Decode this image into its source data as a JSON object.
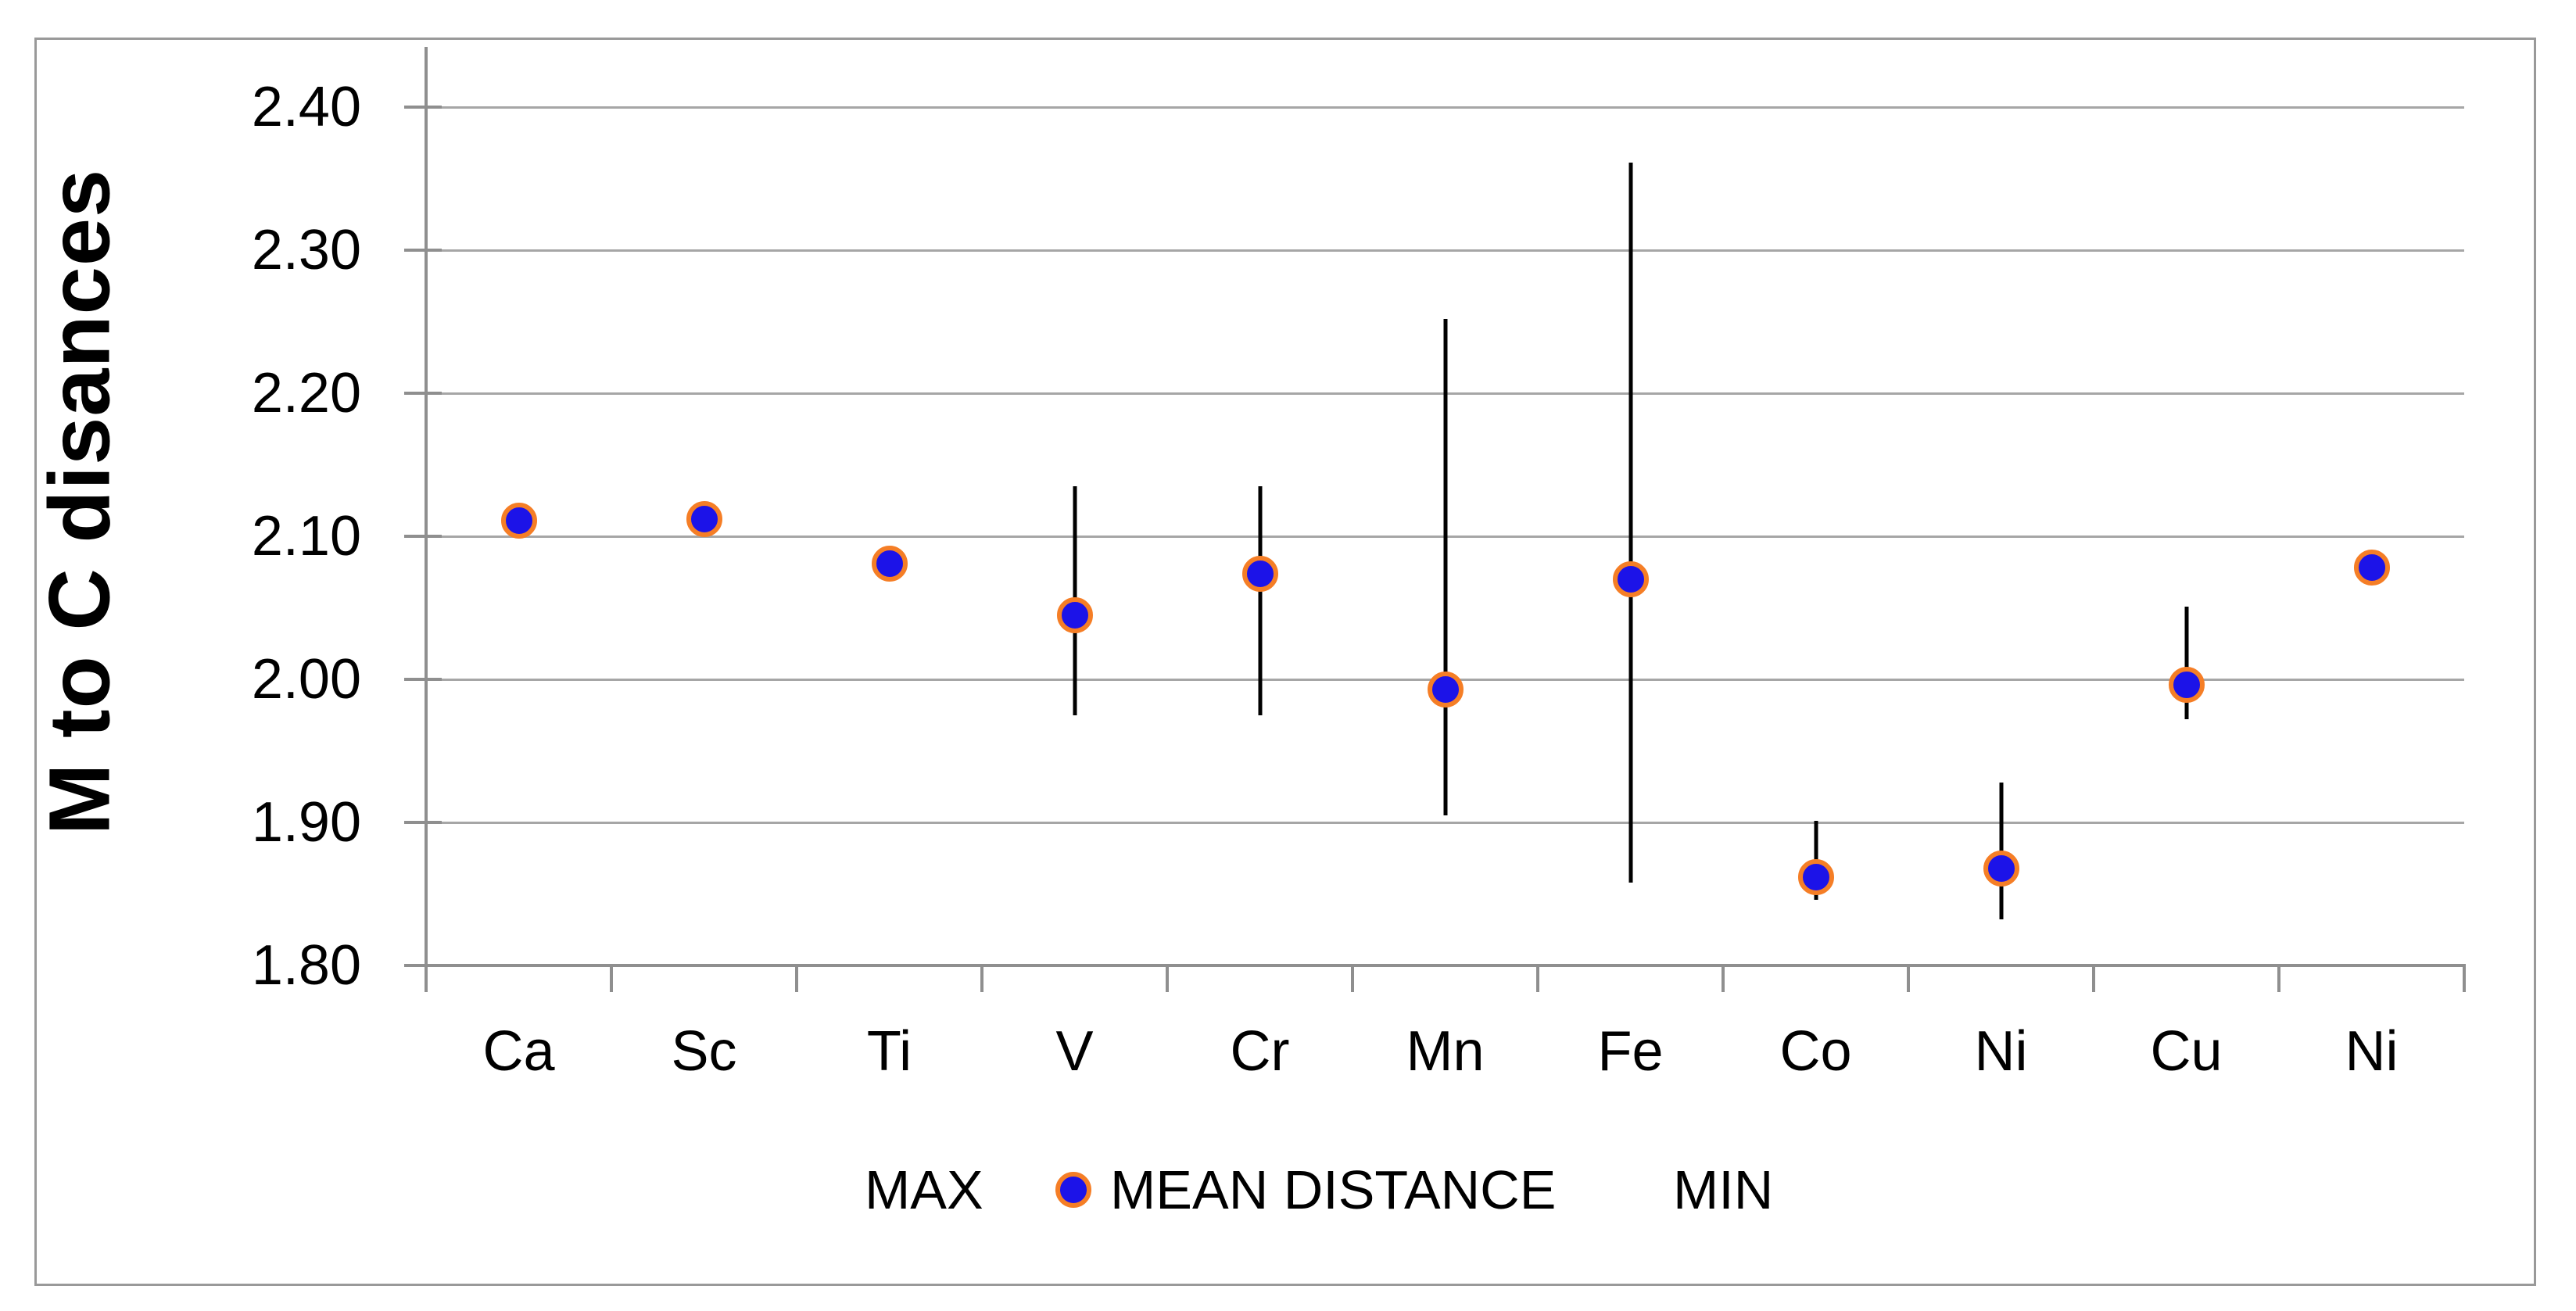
{
  "chart_data": {
    "type": "scatter",
    "title": "",
    "xlabel": "",
    "ylabel": "M to C disances",
    "categories": [
      "Ca",
      "Sc",
      "Ti",
      "V",
      "Cr",
      "Mn",
      "Fe",
      "Co",
      "Ni",
      "Cu",
      "Ni"
    ],
    "series": [
      {
        "name": "MEAN DISTANCE",
        "values": [
          2.111,
          2.112,
          2.081,
          2.045,
          2.074,
          1.993,
          2.07,
          1.862,
          1.868,
          1.996,
          2.078
        ]
      },
      {
        "name": "MAX",
        "values": [
          null,
          null,
          null,
          2.135,
          2.135,
          2.252,
          2.361,
          1.901,
          1.928,
          2.051,
          null
        ]
      },
      {
        "name": "MIN",
        "values": [
          null,
          null,
          null,
          1.975,
          1.975,
          1.905,
          1.858,
          1.846,
          1.832,
          1.972,
          null
        ]
      }
    ],
    "ylim": [
      1.8,
      2.4
    ],
    "ytick_labels": [
      "2.40",
      "2.30",
      "2.20",
      "2.10",
      "2.00",
      "1.90",
      "1.80"
    ],
    "ytick_values": [
      2.4,
      2.3,
      2.2,
      2.1,
      2.0,
      1.9,
      1.8
    ],
    "grid": true,
    "legend_position": "bottom",
    "colors": {
      "marker_fill": "#1c13e8",
      "marker_stroke": "#f57e26",
      "error_bar": "#000000",
      "gridline": "#a6a6a6",
      "axis": "#8f8f8f",
      "frame_border": "#999999",
      "text": "#000000",
      "background": "#ffffff"
    }
  },
  "legend": {
    "max_label": "MAX",
    "mean_label": "MEAN DISTANCE",
    "min_label": "MIN"
  }
}
